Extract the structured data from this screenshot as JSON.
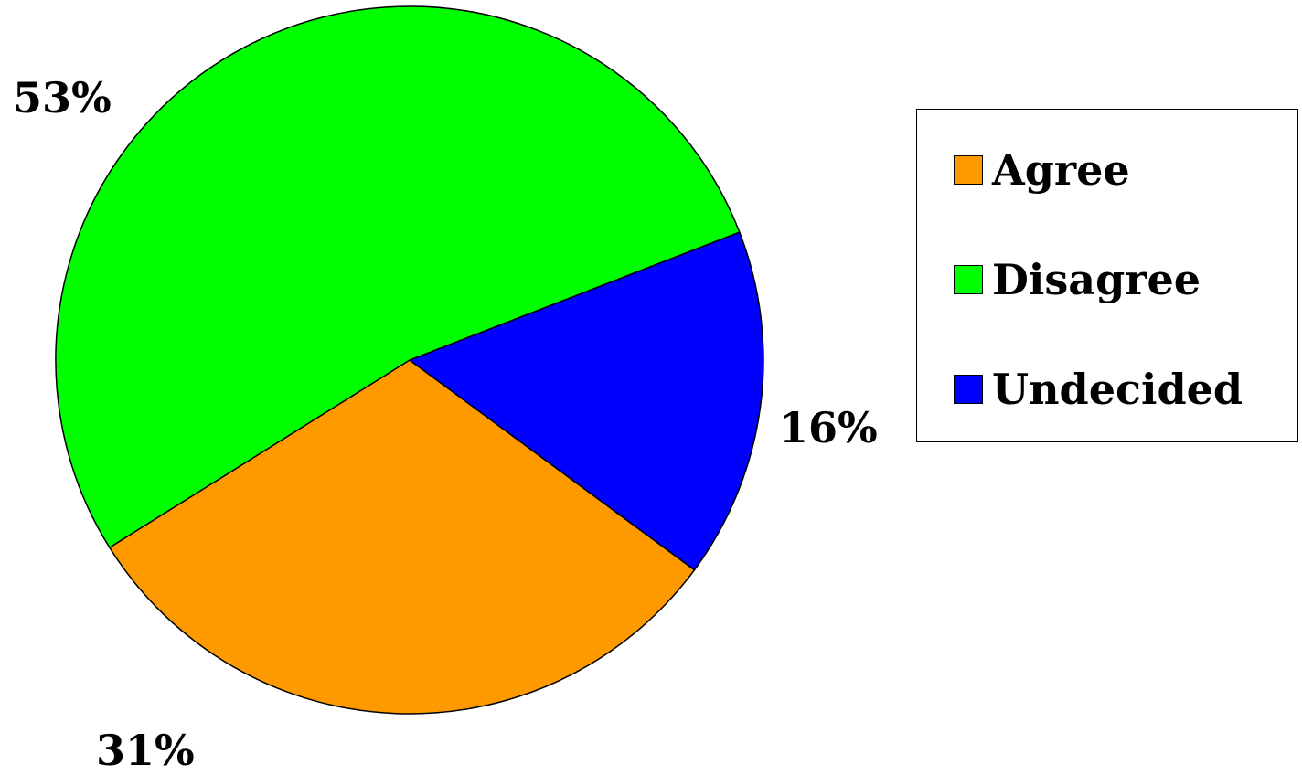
{
  "chart_data": {
    "type": "pie",
    "title": "",
    "slices": [
      {
        "name": "Agree",
        "value": 31,
        "label": "31%",
        "color": "#FF9900"
      },
      {
        "name": "Disagree",
        "value": 53,
        "label": "53%",
        "color": "#00FF00"
      },
      {
        "name": "Undecided",
        "value": 16,
        "label": "16%",
        "color": "#0000FF"
      }
    ],
    "legend_position": "right"
  }
}
